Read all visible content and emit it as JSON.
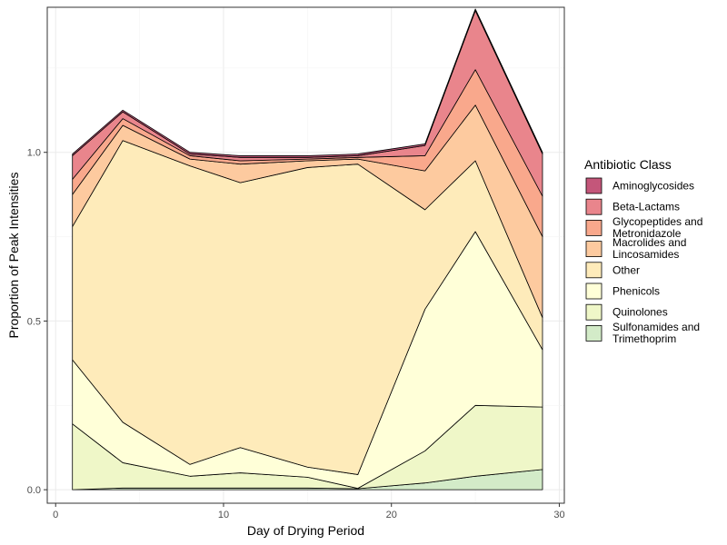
{
  "chart_data": {
    "type": "area",
    "stacked": true,
    "xlabel": "Day of Drying Period",
    "ylabel": "Proportion of Peak Intensities",
    "xlim": [
      -0.5,
      30.3
    ],
    "ylim": [
      -0.04,
      1.43
    ],
    "x_ticks": [
      0,
      10,
      20,
      30
    ],
    "y_ticks": [
      0.0,
      0.5,
      1.0
    ],
    "y_tick_labels": [
      "0.0",
      "0.5",
      "1.0"
    ],
    "grid": true,
    "legend_title": "Antibiotic Class",
    "legend_position": "right",
    "x": [
      1,
      4,
      8,
      11,
      15,
      18,
      22,
      25,
      29
    ],
    "series": [
      {
        "name": "Sulfonamides and Trimethoprim",
        "name_lines": [
          "Sulfonamides and",
          "Trimethoprim"
        ],
        "color": "#d3ebc8",
        "values": [
          0.0,
          0.005,
          0.005,
          0.005,
          0.005,
          0.003,
          0.02,
          0.04,
          0.06
        ]
      },
      {
        "name": "Quinolones",
        "name_lines": [
          "Quinolones"
        ],
        "color": "#eff7c8",
        "values": [
          0.195,
          0.075,
          0.035,
          0.045,
          0.032,
          0.001,
          0.095,
          0.21,
          0.185
        ]
      },
      {
        "name": "Phenicols",
        "name_lines": [
          "Phenicols"
        ],
        "color": "#ffffd8",
        "values": [
          0.19,
          0.12,
          0.035,
          0.075,
          0.03,
          0.041,
          0.42,
          0.515,
          0.17
        ]
      },
      {
        "name": "Other",
        "name_lines": [
          "Other"
        ],
        "color": "#feebba",
        "values": [
          0.395,
          0.835,
          0.885,
          0.785,
          0.888,
          0.92,
          0.295,
          0.21,
          0.095
        ]
      },
      {
        "name": "Macrolides and Lincosamides",
        "name_lines": [
          "Macrolides and",
          "Lincosamides"
        ],
        "color": "#fdca9f",
        "values": [
          0.095,
          0.045,
          0.02,
          0.055,
          0.02,
          0.015,
          0.115,
          0.165,
          0.24
        ]
      },
      {
        "name": "Glycopeptides and Metronidazole",
        "name_lines": [
          "Glycopeptides and",
          "Metronidazole"
        ],
        "color": "#f9a88c",
        "values": [
          0.045,
          0.02,
          0.01,
          0.01,
          0.005,
          0.005,
          0.045,
          0.105,
          0.12
        ]
      },
      {
        "name": "Beta-Lactams",
        "name_lines": [
          "Beta-Lactams"
        ],
        "color": "#e9858c",
        "values": [
          0.07,
          0.02,
          0.005,
          0.01,
          0.005,
          0.005,
          0.03,
          0.175,
          0.125
        ]
      },
      {
        "name": "Aminoglycosides",
        "name_lines": [
          "Aminoglycosides"
        ],
        "color": "#c4567a",
        "values": [
          0.005,
          0.005,
          0.005,
          0.005,
          0.005,
          0.005,
          0.005,
          0.005,
          0.005
        ]
      }
    ]
  }
}
